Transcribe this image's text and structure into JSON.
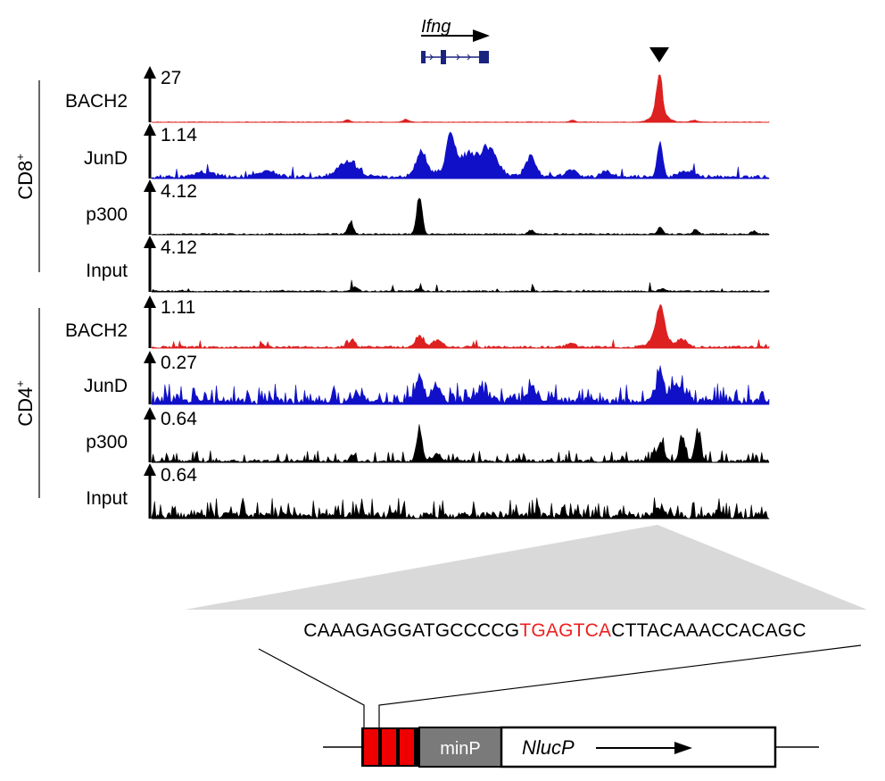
{
  "gene": {
    "name": "Ifng"
  },
  "groups": [
    {
      "label": "CD8",
      "sup": "+"
    },
    {
      "label": "CD4",
      "sup": "+"
    }
  ],
  "tracks": [
    {
      "label": "BACH2",
      "scale": "27",
      "color": "#dd2020",
      "group": 0,
      "profile": "bach2_cd8"
    },
    {
      "label": "JunD",
      "scale": "1.14",
      "color": "#1010c8",
      "group": 0,
      "profile": "jund_cd8"
    },
    {
      "label": "p300",
      "scale": "4.12",
      "color": "#000000",
      "group": 0,
      "profile": "p300_cd8"
    },
    {
      "label": "Input",
      "scale": "4.12",
      "color": "#000000",
      "group": 0,
      "profile": "input_cd8"
    },
    {
      "label": "BACH2",
      "scale": "1.11",
      "color": "#dd2020",
      "group": 1,
      "profile": "bach2_cd4"
    },
    {
      "label": "JunD",
      "scale": "0.27",
      "color": "#1010c8",
      "group": 1,
      "profile": "jund_cd4"
    },
    {
      "label": "p300",
      "scale": "0.64",
      "color": "#000000",
      "group": 1,
      "profile": "p300_cd4"
    },
    {
      "label": "Input",
      "scale": "0.64",
      "color": "#000000",
      "group": 1,
      "profile": "input_cd4"
    }
  ],
  "sequence": {
    "before": "CAAAGAGGATGCCCCG",
    "motif": "TGAGTCA",
    "after": "CTTACAAACCACAGC",
    "motif_color": "#ee2020"
  },
  "construct": {
    "promoter_label": "minP",
    "reporter_label": "NlucP",
    "element_color": "#ee0000",
    "promoter_color": "#7a7a7a"
  }
}
